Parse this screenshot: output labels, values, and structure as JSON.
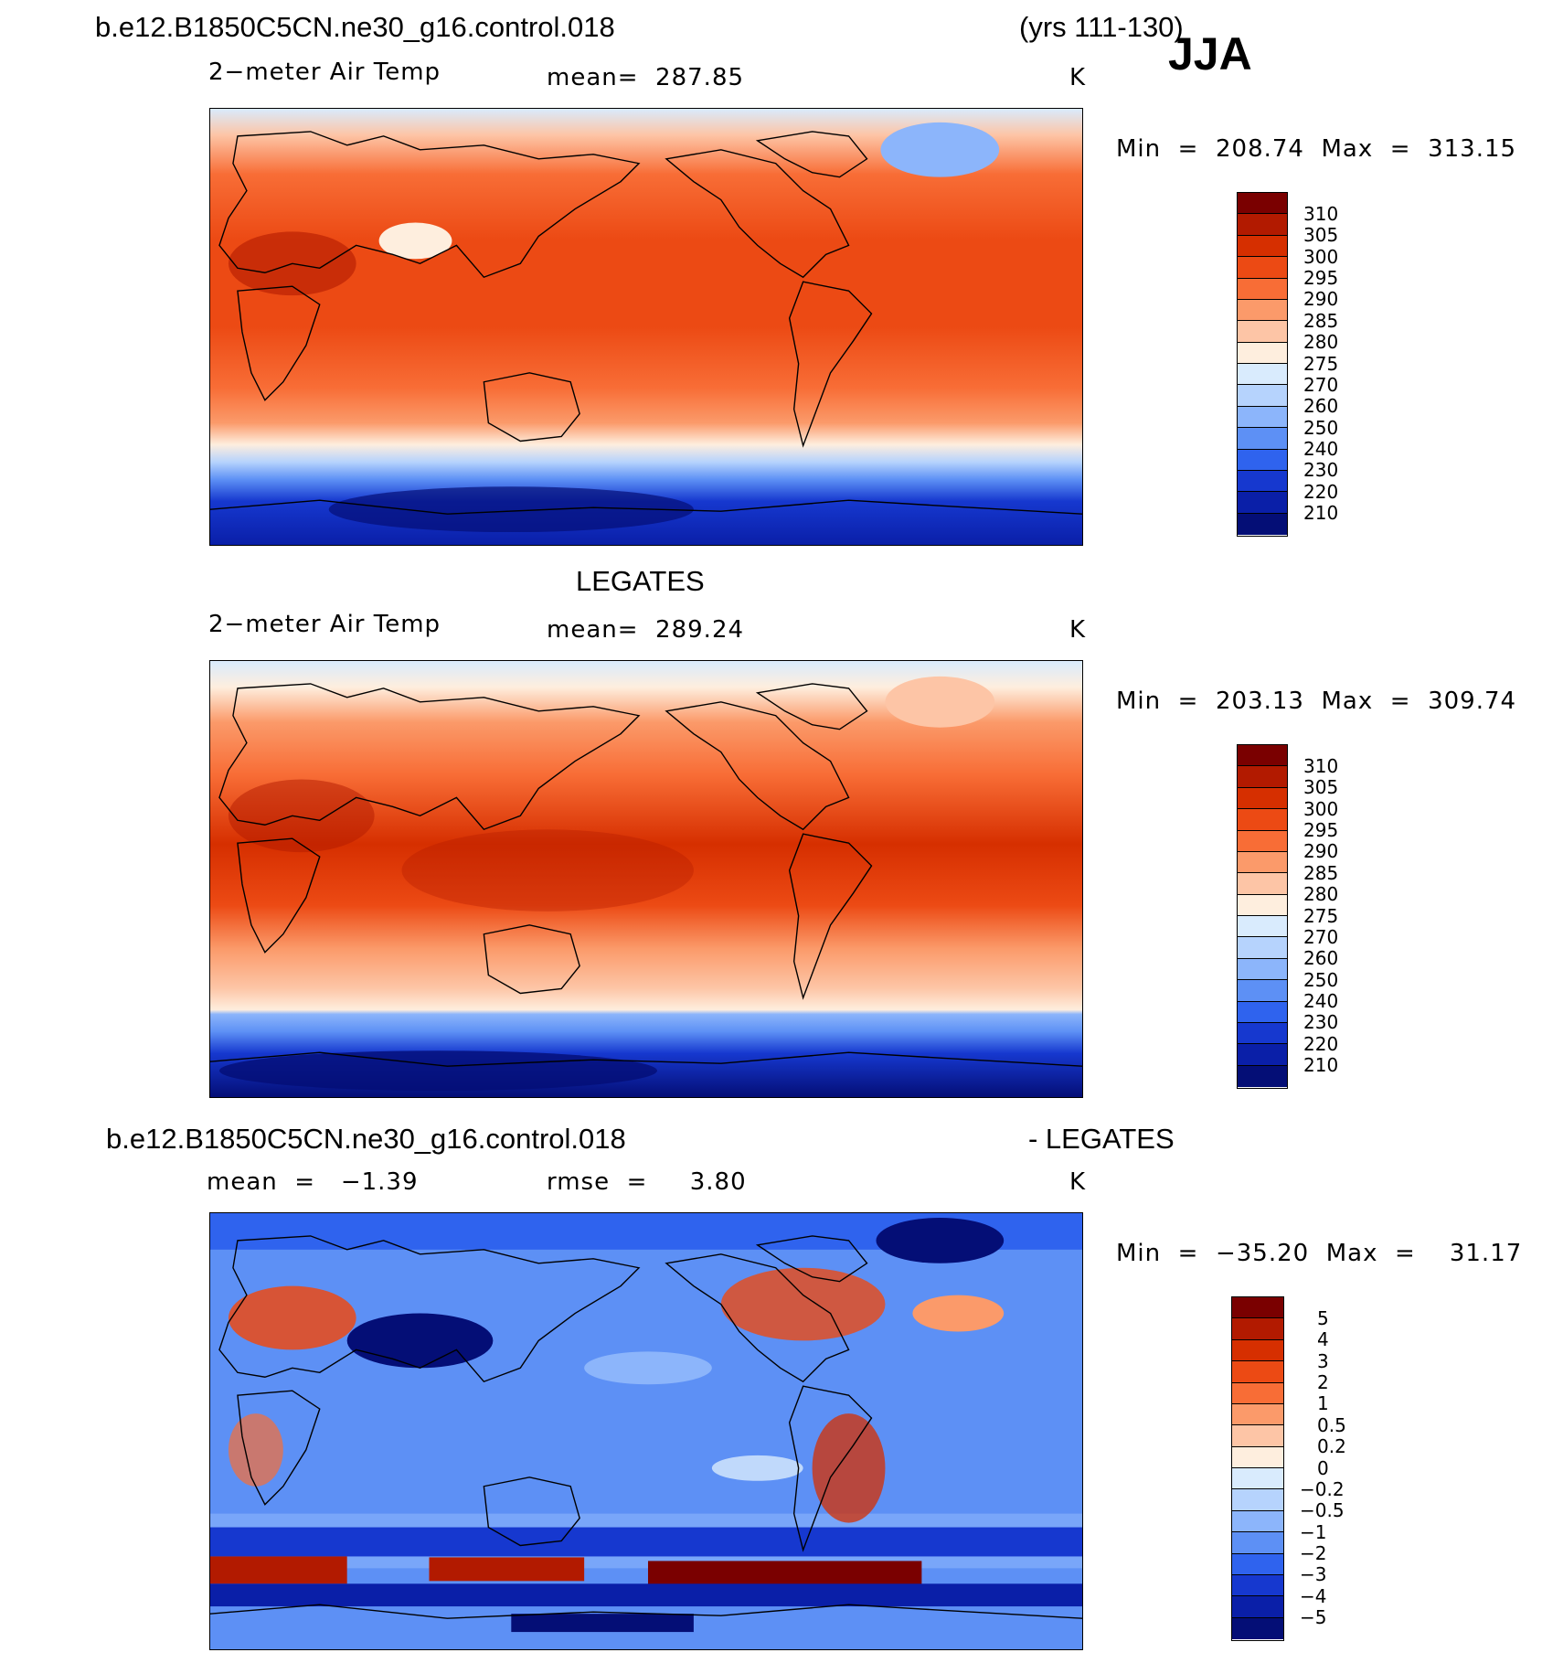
{
  "header": {
    "case_name": "b.e12.B1850C5CN.ne30_g16.control.018",
    "years": "(yrs 111-130)",
    "season": "JJA"
  },
  "panels": [
    {
      "id": "model",
      "title": "",
      "left": "2−meter Air Temp",
      "center": "mean=  287.85",
      "right": "K",
      "minmax": "Min  =  208.74  Max  =  313.15",
      "legend": {
        "labels": [
          "310",
          "305",
          "300",
          "295",
          "290",
          "285",
          "280",
          "275",
          "270",
          "260",
          "250",
          "240",
          "230",
          "220",
          "210"
        ],
        "colors": [
          "#7a0000",
          "#b21a00",
          "#d62f00",
          "#ec4a14",
          "#f86d36",
          "#fb9a6a",
          "#fdc5a6",
          "#feeede",
          "#d9ebfd",
          "#b6d3fd",
          "#8cb5fb",
          "#5d90f5",
          "#2f63ee",
          "#1638cf",
          "#0a1fa8",
          "#040e76"
        ]
      }
    },
    {
      "id": "obs",
      "title": "LEGATES",
      "left": "2−meter Air Temp",
      "center": "mean=  289.24",
      "right": "K",
      "minmax": "Min  =  203.13  Max  =  309.74",
      "legend": {
        "labels": [
          "310",
          "305",
          "300",
          "295",
          "290",
          "285",
          "280",
          "275",
          "270",
          "260",
          "250",
          "240",
          "230",
          "220",
          "210"
        ],
        "colors": [
          "#7a0000",
          "#b21a00",
          "#d62f00",
          "#ec4a14",
          "#f86d36",
          "#fb9a6a",
          "#fdc5a6",
          "#feeede",
          "#d9ebfd",
          "#b6d3fd",
          "#8cb5fb",
          "#5d90f5",
          "#2f63ee",
          "#1638cf",
          "#0a1fa8",
          "#040e76"
        ]
      }
    },
    {
      "id": "diff",
      "title_left": "b.e12.B1850C5CN.ne30_g16.control.018",
      "title_right": "- LEGATES",
      "left": "mean  =   −1.39",
      "center": "rmse  =     3.80",
      "right": "K",
      "minmax": "Min  =  −35.20  Max  =    31.17",
      "legend": {
        "labels": [
          "5",
          "4",
          "3",
          "2",
          "1",
          "0.5",
          "0.2",
          "0",
          "−0.2",
          "−0.5",
          "−1",
          "−2",
          "−3",
          "−4",
          "−5"
        ],
        "colors": [
          "#7a0000",
          "#b21a00",
          "#d62f00",
          "#ec4a14",
          "#f86d36",
          "#fb9a6a",
          "#fdc5a6",
          "#feeede",
          "#d9ebfd",
          "#b6d3fd",
          "#8cb5fb",
          "#5d90f5",
          "#2f63ee",
          "#1638cf",
          "#0a1fa8",
          "#040e76"
        ]
      }
    }
  ]
}
